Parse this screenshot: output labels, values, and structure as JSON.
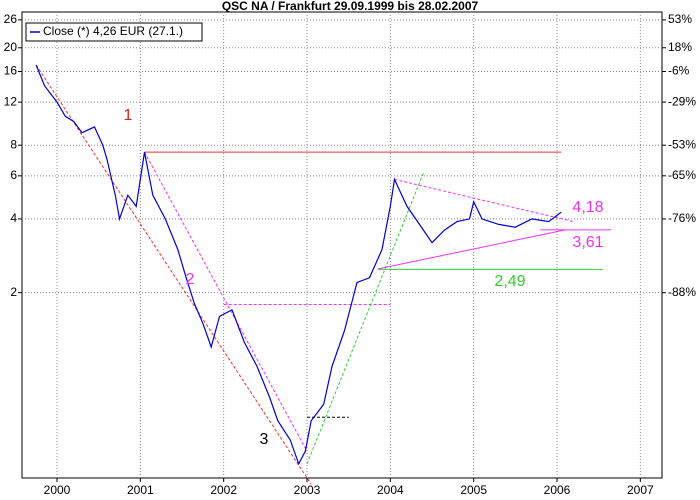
{
  "chart_data": {
    "type": "line",
    "title": "QSC NA / Frankfurt 29.09.1999  bis 28.02.2007",
    "log_y": true,
    "grid": true,
    "legend": "top-left",
    "xlim": [
      1999.58,
      2007.26
    ],
    "xticks": [
      2000,
      2001,
      2002,
      2003,
      2004,
      2005,
      2006,
      2007
    ],
    "ylim": [
      0.35,
      28
    ],
    "yticks": [
      2,
      4,
      6,
      8,
      12,
      16,
      20,
      26
    ],
    "y2lim": [
      0.35,
      28
    ],
    "y2ticks": [
      {
        "value": 2,
        "label": "-88%"
      },
      {
        "value": 4,
        "label": "-76%"
      },
      {
        "value": 6,
        "label": "-65%"
      },
      {
        "value": 8,
        "label": "-53%"
      },
      {
        "value": 12,
        "label": "-29%"
      },
      {
        "value": 16,
        "label": "-6%"
      },
      {
        "value": 20,
        "label": "18%"
      },
      {
        "value": 26,
        "label": "53%"
      }
    ],
    "series": [
      {
        "name": "Close (*) 4,26 EUR (27.1.)",
        "color": "#0000cc",
        "x": [
          1999.75,
          1999.85,
          2000.0,
          2000.1,
          2000.2,
          2000.3,
          2000.45,
          2000.55,
          2000.6,
          2000.7,
          2000.75,
          2000.85,
          2000.95,
          2001.05,
          2001.15,
          2001.3,
          2001.45,
          2001.55,
          2001.65,
          2001.75,
          2001.85,
          2001.95,
          2002.1,
          2002.25,
          2002.4,
          2002.55,
          2002.65,
          2002.8,
          2002.9,
          2002.98,
          2003.05,
          2003.2,
          2003.3,
          2003.45,
          2003.6,
          2003.75,
          2003.9,
          2004.0,
          2004.05,
          2004.2,
          2004.35,
          2004.5,
          2004.65,
          2004.8,
          2004.95,
          2005.0,
          2005.1,
          2005.3,
          2005.5,
          2005.7,
          2005.9,
          2006.05
        ],
        "values": [
          17,
          14,
          12,
          10.5,
          10,
          9,
          9.5,
          8,
          7,
          5,
          4,
          5,
          4.5,
          7.5,
          5,
          4,
          3,
          2.3,
          1.8,
          1.5,
          1.2,
          1.6,
          1.7,
          1.25,
          1.0,
          0.75,
          0.6,
          0.5,
          0.4,
          0.45,
          0.6,
          0.7,
          1.0,
          1.4,
          2.2,
          2.3,
          3,
          4.5,
          5.8,
          4.5,
          3.8,
          3.2,
          3.6,
          3.9,
          4,
          4.7,
          4,
          3.8,
          3.7,
          4.0,
          3.9,
          4.26
        ]
      }
    ],
    "trendlines": [
      {
        "color": "#ee3333",
        "dashed": true,
        "x": [
          1999.75,
          2003.05
        ],
        "y": [
          17,
          0.33
        ]
      },
      {
        "color": "#ee3333",
        "dashed": false,
        "x": [
          2001.05,
          2006.05
        ],
        "y": [
          7.5,
          7.5
        ]
      },
      {
        "color": "#ee33ee",
        "dashed": true,
        "x": [
          2001.05,
          2003.0
        ],
        "y": [
          7.5,
          0.45
        ]
      },
      {
        "color": "#ee33ee",
        "dashed": true,
        "x": [
          2002.0,
          2004.0
        ],
        "y": [
          1.79,
          1.79
        ]
      },
      {
        "color": "#000000",
        "dashed": true,
        "x": [
          2003.0,
          2003.5
        ],
        "y": [
          0.62,
          0.62
        ]
      },
      {
        "color": "#33cc33",
        "dashed": true,
        "x": [
          2003.0,
          2004.4
        ],
        "y": [
          0.4,
          6.2
        ]
      },
      {
        "color": "#33cc33",
        "dashed": false,
        "x": [
          2003.85,
          2006.55
        ],
        "y": [
          2.49,
          2.49
        ]
      },
      {
        "color": "#ee33ee",
        "dashed": false,
        "x": [
          2003.85,
          2006.1
        ],
        "y": [
          2.5,
          3.61
        ]
      },
      {
        "color": "#ee33ee",
        "dashed": false,
        "x": [
          2005.8,
          2006.65
        ],
        "y": [
          3.61,
          3.61
        ]
      },
      {
        "color": "#ee33ee",
        "dashed": true,
        "x": [
          2004.05,
          2006.2
        ],
        "y": [
          5.8,
          3.9
        ]
      }
    ],
    "annotations": [
      {
        "text": "1",
        "color": "#dd2222"
      },
      {
        "text": "2",
        "color": "#ee33ee"
      },
      {
        "text": "3",
        "color": "#000000"
      },
      {
        "text": "4,18",
        "color": "#ee33ee"
      },
      {
        "text": "3,61",
        "color": "#ee33ee"
      },
      {
        "text": "2,49",
        "color": "#33cc33"
      }
    ]
  }
}
